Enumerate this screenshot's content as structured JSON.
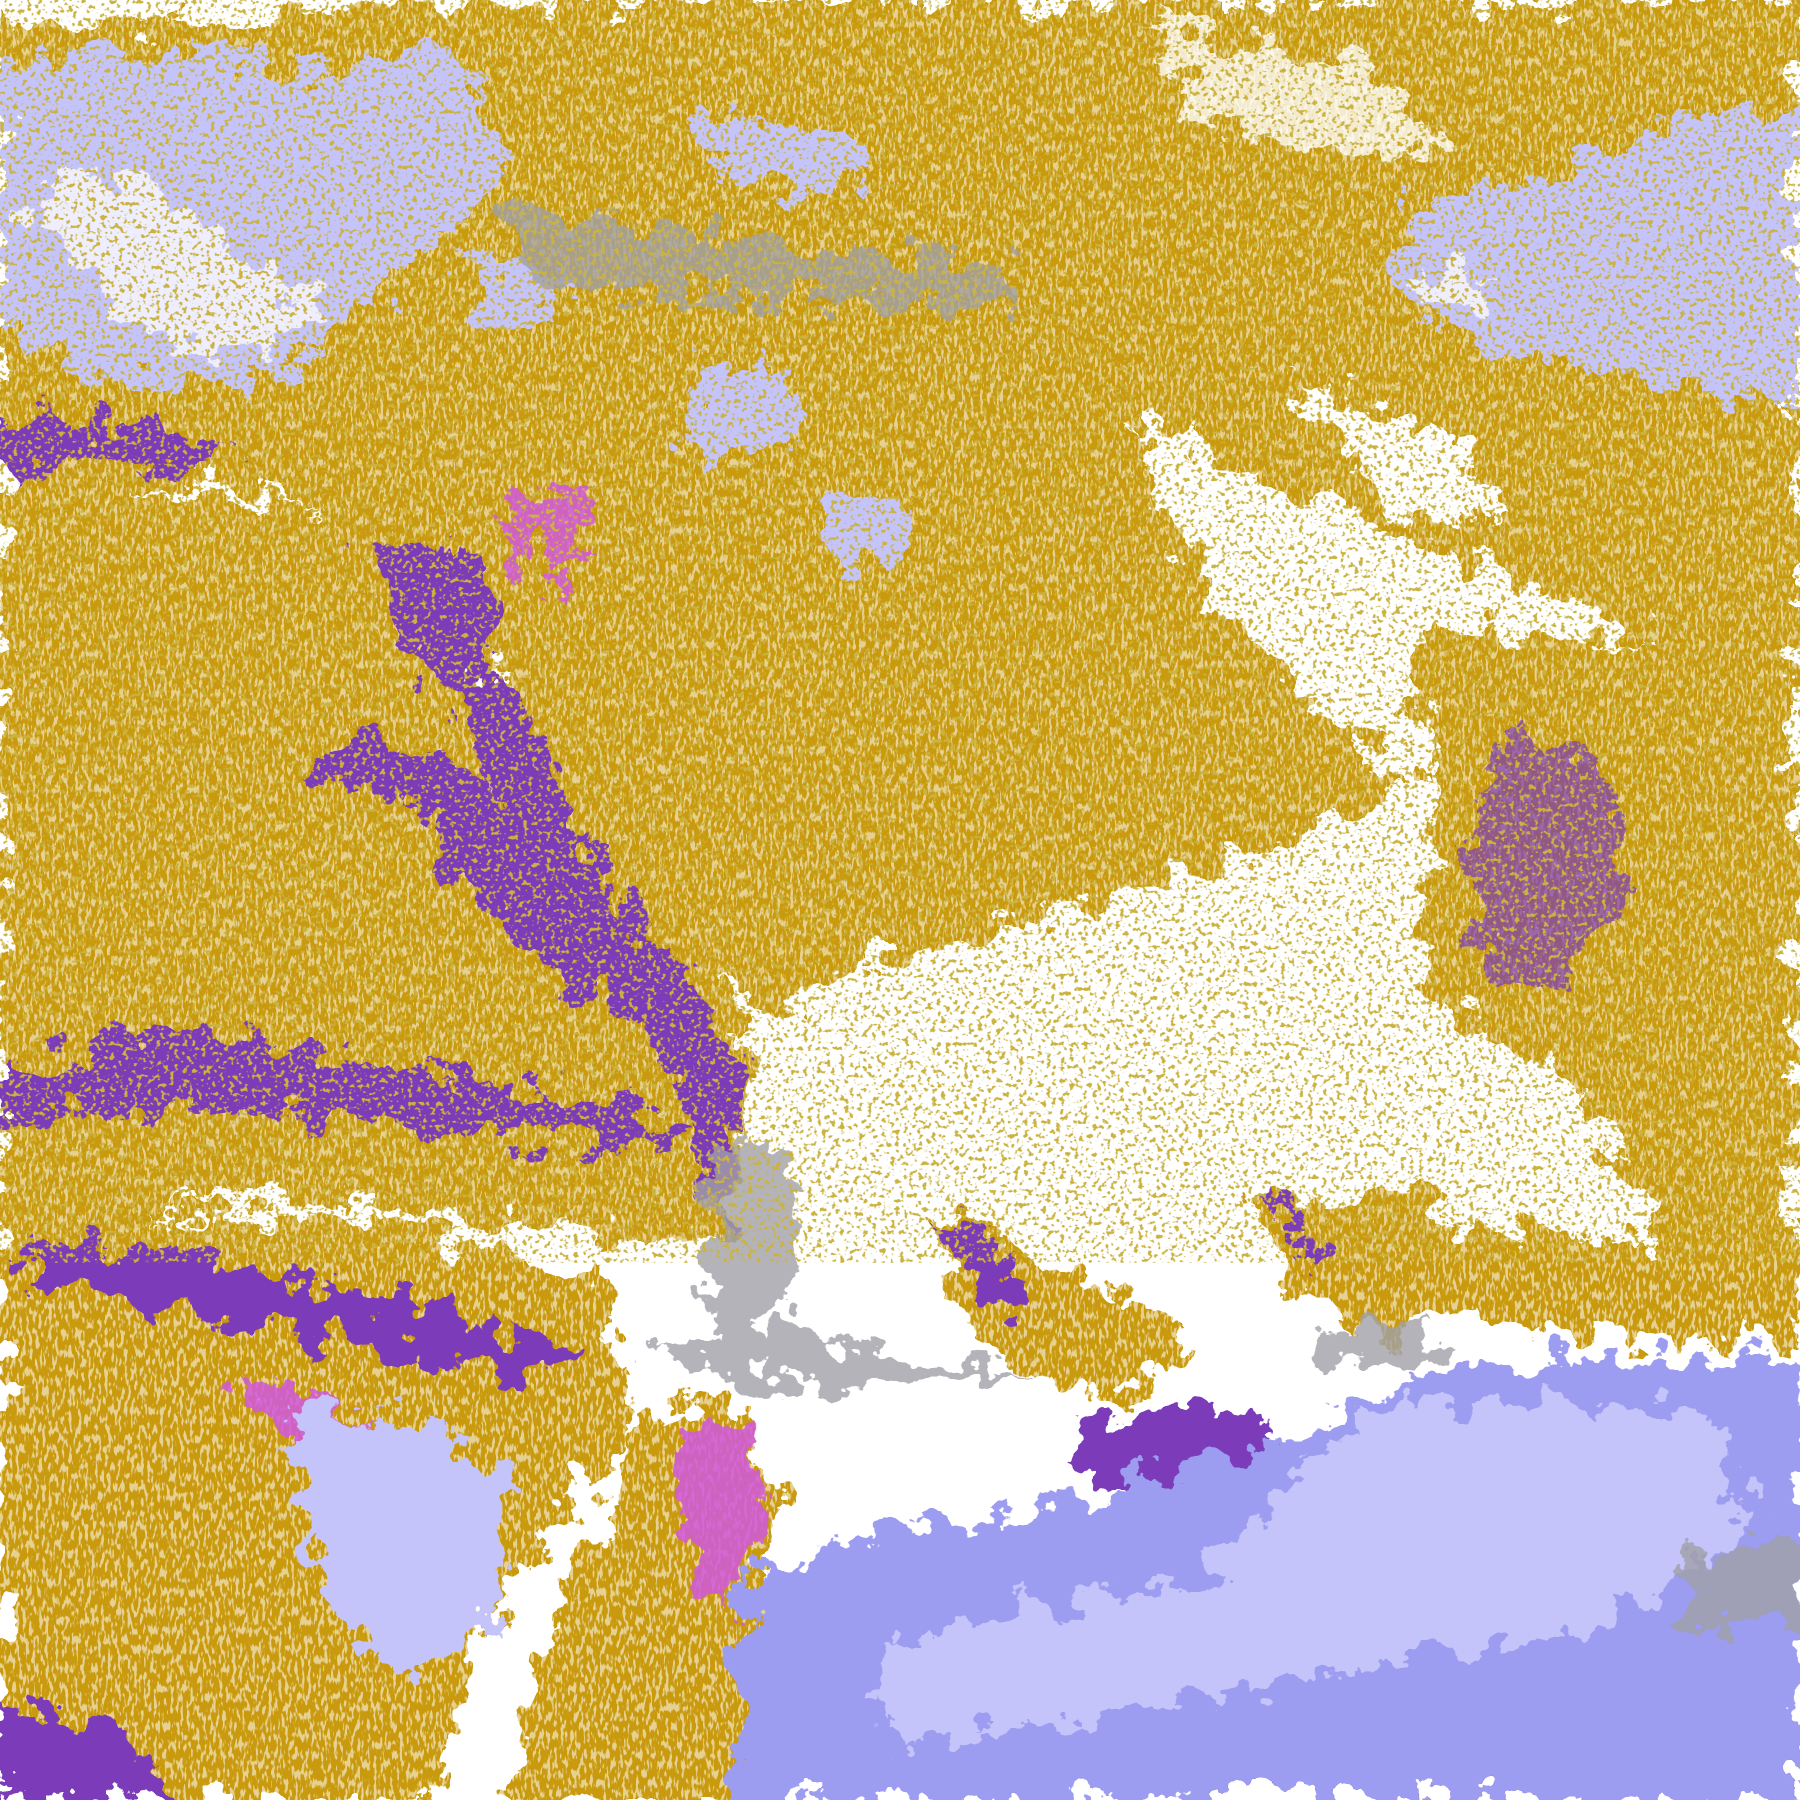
{
  "image": {
    "kind": "false-color satellite cloud imagery",
    "colors": {
      "clear": "#ffffff",
      "gold": "#c99a0c",
      "gold_light": "#dcae1a",
      "purple": "#7b3ab8",
      "magenta": "#d058e0",
      "lavender": "#c4c4fa",
      "periwinkle": "#9c9cf0",
      "pale": "#eeeeff",
      "gray": "#a0a0a8"
    }
  }
}
